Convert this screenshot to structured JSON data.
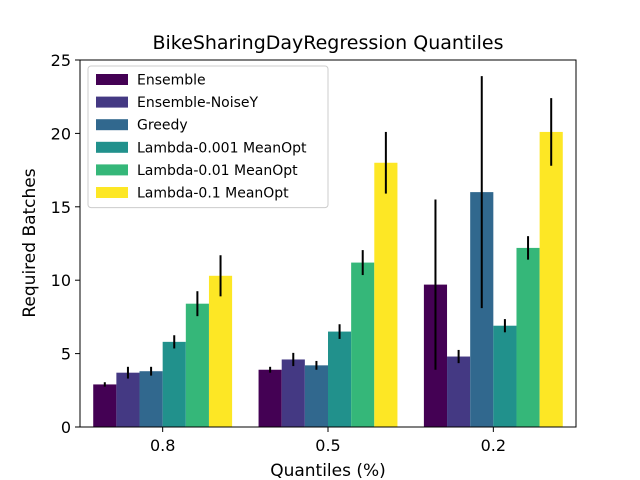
{
  "chart_data": {
    "type": "bar",
    "title": "BikeSharingDayRegression Quantiles",
    "xlabel": "Quantiles (%)",
    "ylabel": "Required Batches",
    "ylim": [
      0,
      25
    ],
    "yticks": [
      0,
      5,
      10,
      15,
      20,
      25
    ],
    "categories": [
      "0.8",
      "0.5",
      "0.2"
    ],
    "legend_position": "top-left",
    "series": [
      {
        "name": "Ensemble",
        "color": "#440154",
        "values": [
          2.9,
          3.9,
          9.7
        ],
        "errors": [
          0.15,
          0.2,
          5.8
        ]
      },
      {
        "name": "Ensemble-NoiseY",
        "color": "#443983",
        "values": [
          3.7,
          4.6,
          4.8
        ],
        "errors": [
          0.4,
          0.45,
          0.45
        ]
      },
      {
        "name": "Greedy",
        "color": "#31688e",
        "values": [
          3.8,
          4.2,
          16.0
        ],
        "errors": [
          0.3,
          0.3,
          7.9
        ]
      },
      {
        "name": "Lambda-0.001 MeanOpt",
        "color": "#21918c",
        "values": [
          5.8,
          6.5,
          6.9
        ],
        "errors": [
          0.45,
          0.5,
          0.45
        ]
      },
      {
        "name": "Lambda-0.01 MeanOpt",
        "color": "#35b779",
        "values": [
          8.4,
          11.2,
          12.2
        ],
        "errors": [
          0.85,
          0.85,
          0.8
        ]
      },
      {
        "name": "Lambda-0.1 MeanOpt",
        "color": "#fde725",
        "values": [
          10.3,
          18.0,
          20.1
        ],
        "errors": [
          1.4,
          2.1,
          2.3
        ]
      }
    ]
  }
}
